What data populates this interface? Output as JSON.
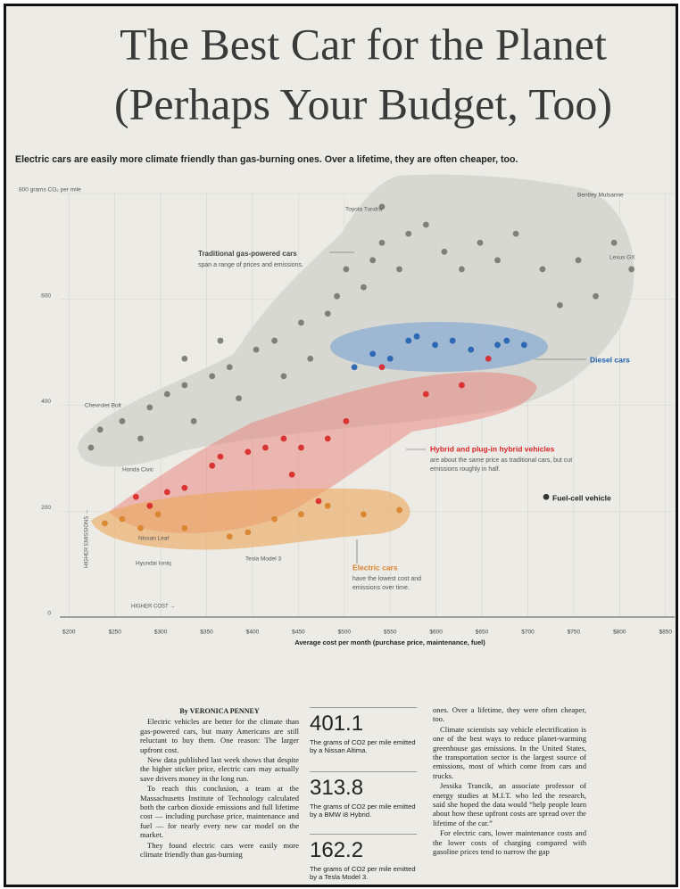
{
  "header": {
    "title_lines": [
      "The Best Car for the Planet",
      "(Perhaps Your Budget, Too)"
    ],
    "subtitle": "Electric cars are easily more climate friendly than gas-burning ones. Over a lifetime, they are often cheaper, too."
  },
  "chart_data": {
    "type": "scatter",
    "x_label": "Average cost per month (purchase price, maintenance, fuel)",
    "x_note": "HIGHER COST →",
    "y_note": "HIGHER EMISSIONS →",
    "xlim": [
      190,
      860
    ],
    "xticks": [
      {
        "value": 200,
        "label": "$200"
      },
      {
        "value": 250,
        "label": "$250"
      },
      {
        "value": 300,
        "label": "$300"
      },
      {
        "value": 350,
        "label": "$350"
      },
      {
        "value": 400,
        "label": "$400"
      },
      {
        "value": 450,
        "label": "$450"
      },
      {
        "value": 500,
        "label": "$500"
      },
      {
        "value": 550,
        "label": "$550"
      },
      {
        "value": 600,
        "label": "$600"
      },
      {
        "value": 650,
        "label": "$650"
      },
      {
        "value": 700,
        "label": "$700"
      },
      {
        "value": 750,
        "label": "$750"
      },
      {
        "value": 800,
        "label": "$800"
      },
      {
        "value": 850,
        "label": "$850"
      }
    ],
    "ylim": [
      0,
      800
    ],
    "yticks": [
      0,
      200,
      400,
      600,
      {
        "value": 800,
        "label": "800 grams CO₂ per mile"
      }
    ],
    "grid": true,
    "annotations": [
      "Toyota Tundra",
      "Bentley Mulsanne",
      "Lexus GX",
      "Chevrolet Bolt",
      "Honda Civic",
      "Nissan Leaf",
      "Hyundai Ioniq",
      "Tesla Model 3"
    ],
    "series": [
      {
        "name": "Traditional gas-powered cars",
        "description": [
          "span a range of prices and emissions."
        ],
        "color": "#77776f",
        "x": [
          224,
          234,
          258,
          278,
          288,
          307,
          326,
          336,
          356,
          375,
          385,
          404,
          424,
          434,
          453,
          463,
          482,
          492,
          502,
          521,
          531,
          541,
          560,
          570,
          589,
          609,
          628,
          648,
          667,
          687,
          716,
          735,
          755,
          774,
          794,
          813,
          541,
          365,
          326
        ],
        "values": [
          320,
          354,
          370,
          337,
          396,
          421,
          438,
          370,
          455,
          472,
          413,
          505,
          522,
          455,
          556,
          488,
          573,
          606,
          657,
          623,
          674,
          707,
          657,
          724,
          741,
          690,
          657,
          707,
          674,
          724,
          657,
          589,
          674,
          606,
          707,
          657,
          775,
          522,
          488
        ]
      },
      {
        "name": "Diesel cars",
        "description": [],
        "color": "#1f5fb0",
        "x": [
          511,
          531,
          550,
          570,
          579,
          599,
          618,
          638,
          667,
          677,
          696
        ],
        "values": [
          472,
          497,
          488,
          522,
          530,
          514,
          522,
          505,
          514,
          522,
          514
        ]
      },
      {
        "name": "Hybrid and plug-in hybrid vehicles",
        "description": [
          "are about the same price as traditional cars, but cut",
          "emissions roughly in half."
        ],
        "color": "#d92628",
        "x": [
          273,
          288,
          307,
          326,
          356,
          365,
          395,
          414,
          434,
          453,
          482,
          502,
          541,
          589,
          628,
          657,
          472,
          443
        ],
        "values": [
          227,
          210,
          236,
          244,
          286,
          303,
          312,
          320,
          337,
          320,
          337,
          370,
          472,
          421,
          438,
          488,
          219,
          269
        ]
      },
      {
        "name": "Electric cars",
        "description": [
          "have the lowest cost and",
          "emissions over time."
        ],
        "color": "#d9822b",
        "x": [
          239,
          258,
          278,
          297,
          326,
          375,
          395,
          424,
          453,
          482,
          521,
          560
        ],
        "values": [
          177,
          185,
          168,
          194,
          168,
          152,
          160,
          185,
          194,
          210,
          194,
          202
        ]
      },
      {
        "name": "Fuel-cell vehicle",
        "description": [],
        "color": "#222222",
        "x": [
          720
        ],
        "values": [
          227
        ]
      }
    ]
  },
  "article": {
    "byline": "By VERONICA PENNEY",
    "left": [
      "Electric vehicles are better for the climate than gas-powered cars, but many Americans are still reluctant to buy them. One reason: The larger upfront cost.",
      "New data published last week shows that despite the higher sticker price, electric cars may actually save drivers money in the long run.",
      "To reach this conclusion, a team at the Massachusetts Institute of Technology calculated both the carbon dioxide emissions and full lifetime cost — including purchase price, maintenance and fuel — for nearly every new car model on the market.",
      "They found electric cars were easily more climate friendly than gas-burning"
    ],
    "stats": [
      {
        "value": 401.1,
        "caption": "The grams of CO2 per mile emitted by a Nissan Altima."
      },
      {
        "value": 313.8,
        "caption": "The grams of CO2 per mile emitted by a BMW i8 Hybrid."
      },
      {
        "value": 162.2,
        "caption": "The grams of CO2 per mile emitted by a Tesla Model 3."
      }
    ],
    "right": [
      "ones. Over a lifetime, they were often cheaper, too.",
      "Climate scientists say vehicle electrification is one of the best ways to reduce planet-warming greenhouse gas emissions. In the United States, the transportation sector is the largest source of emissions, most of which come from cars and trucks.",
      "Jessika Trancik, an associate professor of energy studies at M.I.T. who led the research, said she hoped the data would “help people learn about how these upfront costs are spread over the lifetime of the car.”",
      "For electric cars, lower maintenance costs and the lower costs of charging compared with gasoline prices tend to narrow the gap"
    ]
  }
}
